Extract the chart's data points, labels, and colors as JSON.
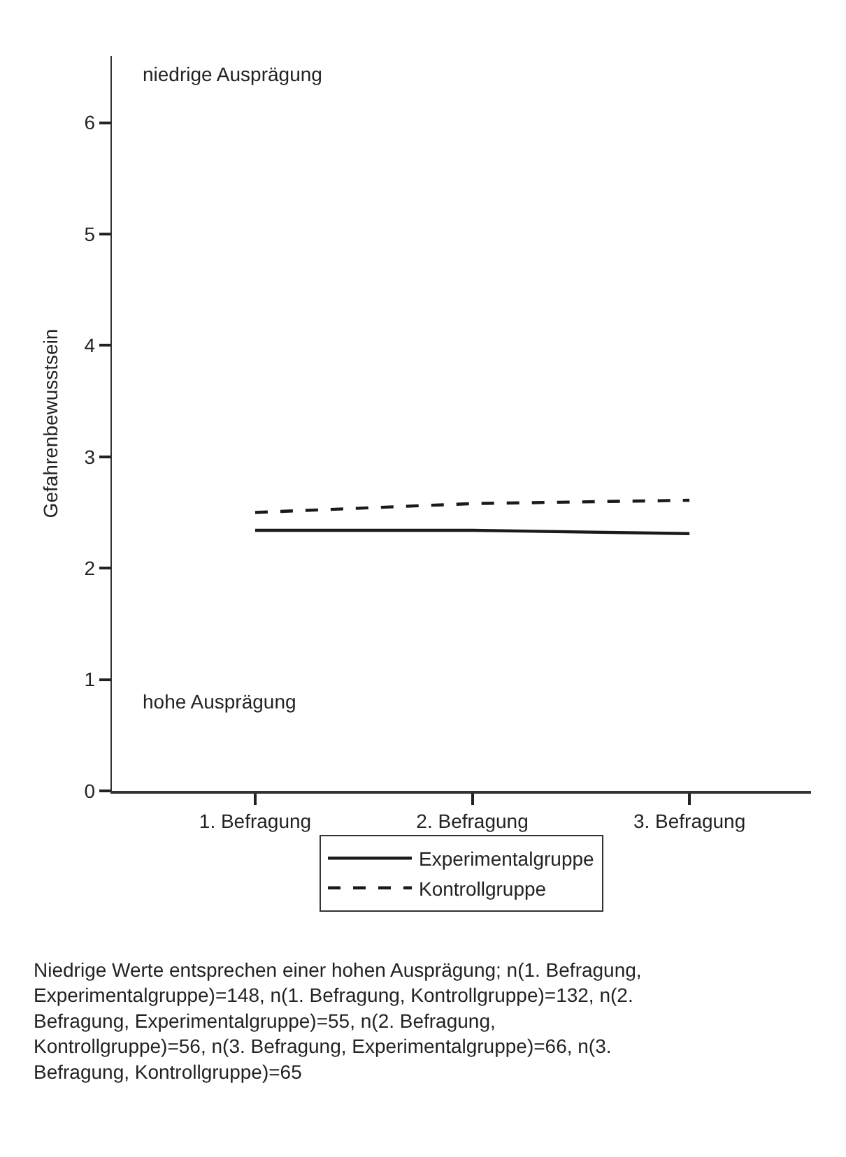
{
  "chart_data": {
    "type": "line",
    "ylabel": "Gefahrenbewusstsein",
    "categories": [
      "1. Befragung",
      "2. Befragung",
      "3. Befragung"
    ],
    "series": [
      {
        "name": "Experimentalgruppe",
        "color": "#1a1a1a",
        "values": [
          2.34,
          2.34,
          2.31
        ],
        "line_style": "solid"
      },
      {
        "name": "Kontrollgruppe",
        "color": "#1a1a1a",
        "values": [
          2.5,
          2.58,
          2.61
        ],
        "line_style": "dashed"
      }
    ],
    "ylim": [
      0,
      6.6
    ],
    "yticks": [
      0,
      1,
      2,
      3,
      4,
      5,
      6
    ],
    "legend": "bottom",
    "marker": "none",
    "annotations": [
      "niedrige Ausprägung",
      "hohe Ausprägung",
      "Niedrige Werte entsprechen einer hohen Ausprägung; n(1. Befragung, Experimentalgruppe)=148, n(1. Befragung, Kontrollgruppe)=132, n(2. Befragung, Experimentalgruppe)=55, n(2. Befragung, Kontrollgruppe)=56, n(3. Befragung, Experimentalgruppe)=66, n(3. Befragung, Kontrollgruppe)=65"
    ]
  }
}
